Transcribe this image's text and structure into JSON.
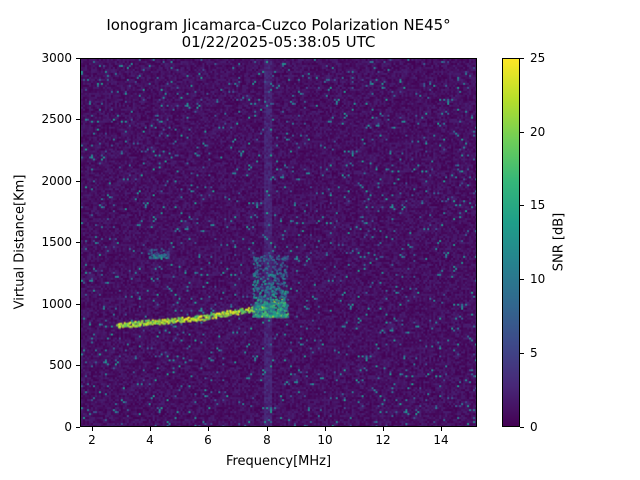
{
  "chart_data": {
    "type": "heatmap",
    "title": "Ionogram Jicamarca-Cuzco Polarization NE45°",
    "subtitle": "01/22/2025-05:38:05 UTC",
    "xlabel": "Frequency[MHz]",
    "ylabel": "Virtual Distance[Km]",
    "xlim": [
      1.6,
      15.2
    ],
    "ylim": [
      0,
      3000
    ],
    "xticks": [
      2,
      4,
      6,
      8,
      10,
      12,
      14
    ],
    "yticks": [
      0,
      500,
      1000,
      1500,
      2000,
      2500,
      3000
    ],
    "colorbar": {
      "label": "SNR [dB]",
      "range": [
        0,
        25
      ],
      "ticks": [
        0,
        5,
        10,
        15,
        20,
        25
      ],
      "colormap": "viridis"
    },
    "grid": false,
    "features": [
      {
        "name": "F-layer trace",
        "freq_mhz": [
          2.8,
          3.5,
          4.5,
          5.5,
          6.5,
          7.5,
          8.5
        ],
        "distance_km": [
          820,
          840,
          860,
          880,
          920,
          960,
          1020
        ],
        "snr_db": 25
      },
      {
        "name": "F-layer spread echoes",
        "freq_mhz": [
          7.5,
          8.7
        ],
        "distance_km": [
          900,
          1400
        ],
        "snr_db": 20
      },
      {
        "name": "Second-hop echo",
        "freq_mhz": [
          3.9,
          4.6
        ],
        "distance_km": [
          1380,
          1460
        ],
        "snr_db": 15
      },
      {
        "name": "Vertical interference band",
        "freq_mhz": 8.0,
        "distance_km": [
          0,
          3000
        ],
        "snr_db": 4
      }
    ],
    "background_snr_db": [
      0,
      3
    ]
  },
  "title_line1": "Ionogram Jicamarca-Cuzco Polarization NE45°",
  "title_line2": "01/22/2025-05:38:05 UTC",
  "xlabel": "Frequency[MHz]",
  "ylabel": "Virtual Distance[Km]",
  "xticks": [
    "2",
    "4",
    "6",
    "8",
    "10",
    "12",
    "14"
  ],
  "yticks": [
    "0",
    "500",
    "1000",
    "1500",
    "2000",
    "2500",
    "3000"
  ],
  "cbar_title": "SNR [dB]",
  "cbar_ticks": [
    "0",
    "5",
    "10",
    "15",
    "20",
    "25"
  ]
}
